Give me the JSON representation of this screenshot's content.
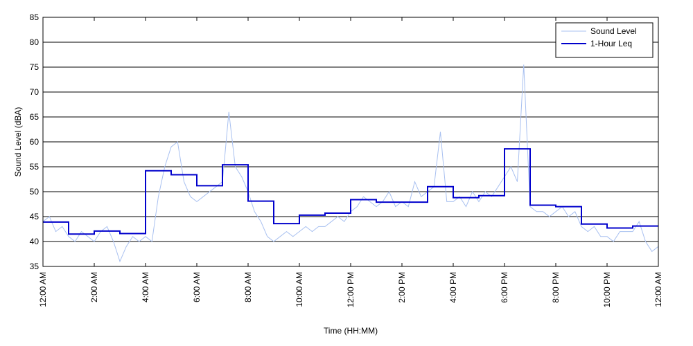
{
  "chart_data": {
    "type": "line",
    "xlabel": "Time (HH:MM)",
    "ylabel": "Sound Level (dBA)",
    "xlim": [
      0,
      24
    ],
    "ylim": [
      35,
      85
    ],
    "xticks": [
      {
        "value": 0,
        "label": "12:00 AM"
      },
      {
        "value": 2,
        "label": "2:00 AM"
      },
      {
        "value": 4,
        "label": "4:00 AM"
      },
      {
        "value": 6,
        "label": "6:00 AM"
      },
      {
        "value": 8,
        "label": "8:00 AM"
      },
      {
        "value": 10,
        "label": "10:00 AM"
      },
      {
        "value": 12,
        "label": "12:00 PM"
      },
      {
        "value": 14,
        "label": "2:00 PM"
      },
      {
        "value": 16,
        "label": "4:00 PM"
      },
      {
        "value": 18,
        "label": "6:00 PM"
      },
      {
        "value": 20,
        "label": "8:00 PM"
      },
      {
        "value": 22,
        "label": "10:00 PM"
      },
      {
        "value": 24,
        "label": "12:00 AM"
      }
    ],
    "yticks": [
      35,
      40,
      45,
      50,
      55,
      60,
      65,
      70,
      75,
      80,
      85
    ],
    "grid": true,
    "legend": "upper right",
    "series": [
      {
        "name": "Sound Level",
        "color": "#a8c0f0",
        "width": 1,
        "step": false,
        "x": [
          0,
          0.25,
          0.5,
          0.75,
          1,
          1.25,
          1.5,
          1.75,
          2,
          2.25,
          2.5,
          2.75,
          3,
          3.25,
          3.5,
          3.75,
          4,
          4.25,
          4.5,
          4.75,
          5,
          5.25,
          5.5,
          5.75,
          6,
          6.25,
          6.5,
          6.75,
          7,
          7.25,
          7.5,
          7.75,
          8,
          8.25,
          8.5,
          8.75,
          9,
          9.25,
          9.5,
          9.75,
          10,
          10.25,
          10.5,
          10.75,
          11,
          11.25,
          11.5,
          11.75,
          12,
          12.25,
          12.5,
          12.75,
          13,
          13.25,
          13.5,
          13.75,
          14,
          14.25,
          14.5,
          14.75,
          15,
          15.25,
          15.5,
          15.75,
          16,
          16.25,
          16.5,
          16.75,
          17,
          17.25,
          17.5,
          17.75,
          18,
          18.25,
          18.5,
          18.75,
          19,
          19.25,
          19.5,
          19.75,
          20,
          20.25,
          20.5,
          20.75,
          21,
          21.25,
          21.5,
          21.75,
          22,
          22.25,
          22.5,
          22.75,
          23,
          23.25,
          23.5,
          23.75,
          24
        ],
        "values": [
          44,
          45,
          42,
          43,
          41,
          40,
          42,
          41,
          40,
          42,
          43,
          40,
          36,
          39,
          41,
          40,
          41,
          40,
          49,
          55,
          59,
          60,
          52,
          49,
          48,
          49,
          50,
          51,
          52,
          66,
          55,
          53,
          50,
          46,
          44,
          41,
          40,
          41,
          42,
          41,
          42,
          43,
          42,
          43,
          43,
          44,
          45,
          44,
          46,
          47,
          49,
          48,
          47,
          48,
          50,
          47,
          48,
          47,
          52,
          49,
          50,
          51,
          62,
          48,
          48,
          49,
          47,
          50,
          48,
          50,
          49,
          51,
          53,
          55,
          52,
          75.5,
          47,
          46,
          46,
          45,
          46,
          47,
          45,
          46,
          43,
          42,
          43,
          41,
          41,
          40,
          42,
          42,
          42,
          44,
          40,
          38,
          39
        ]
      },
      {
        "name": "1-Hour Leq",
        "color": "#0000cc",
        "width": 2,
        "step": true,
        "x": [
          0,
          1,
          2,
          3,
          4,
          5,
          6,
          7,
          8,
          9,
          10,
          11,
          12,
          13,
          14,
          15,
          16,
          17,
          18,
          19,
          20,
          21,
          22,
          23
        ],
        "values": [
          43.9,
          41.5,
          42.1,
          41.6,
          54.2,
          53.4,
          51.2,
          55.4,
          48.1,
          43.6,
          45.3,
          45.7,
          48.4,
          47.9,
          47.9,
          51.0,
          48.8,
          49.2,
          58.6,
          47.3,
          47.0,
          43.5,
          42.7,
          43.1
        ]
      }
    ]
  }
}
